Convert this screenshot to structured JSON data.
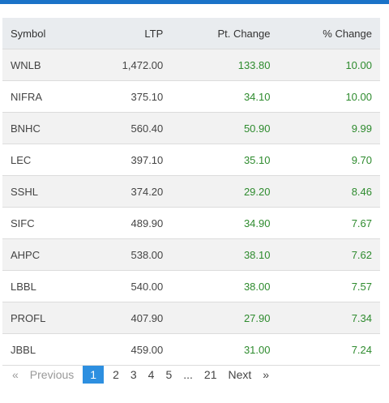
{
  "table": {
    "headers": [
      "Symbol",
      "LTP",
      "Pt. Change",
      "% Change"
    ],
    "rows": [
      [
        "WNLB",
        "1,472.00",
        "133.80",
        "10.00"
      ],
      [
        "NIFRA",
        "375.10",
        "34.10",
        "10.00"
      ],
      [
        "BNHC",
        "560.40",
        "50.90",
        "9.99"
      ],
      [
        "LEC",
        "397.10",
        "35.10",
        "9.70"
      ],
      [
        "SSHL",
        "374.20",
        "29.20",
        "8.46"
      ],
      [
        "SIFC",
        "489.90",
        "34.90",
        "7.67"
      ],
      [
        "AHPC",
        "538.00",
        "38.10",
        "7.62"
      ],
      [
        "LBBL",
        "540.00",
        "38.00",
        "7.57"
      ],
      [
        "PROFL",
        "407.90",
        "27.90",
        "7.34"
      ],
      [
        "JBBL",
        "459.00",
        "31.00",
        "7.24"
      ]
    ]
  },
  "pagination": {
    "prev_icon": "«",
    "previous": "Previous",
    "pages": [
      "1",
      "2",
      "3",
      "4",
      "5",
      "...",
      "21"
    ],
    "next": "Next",
    "next_icon": "»"
  }
}
